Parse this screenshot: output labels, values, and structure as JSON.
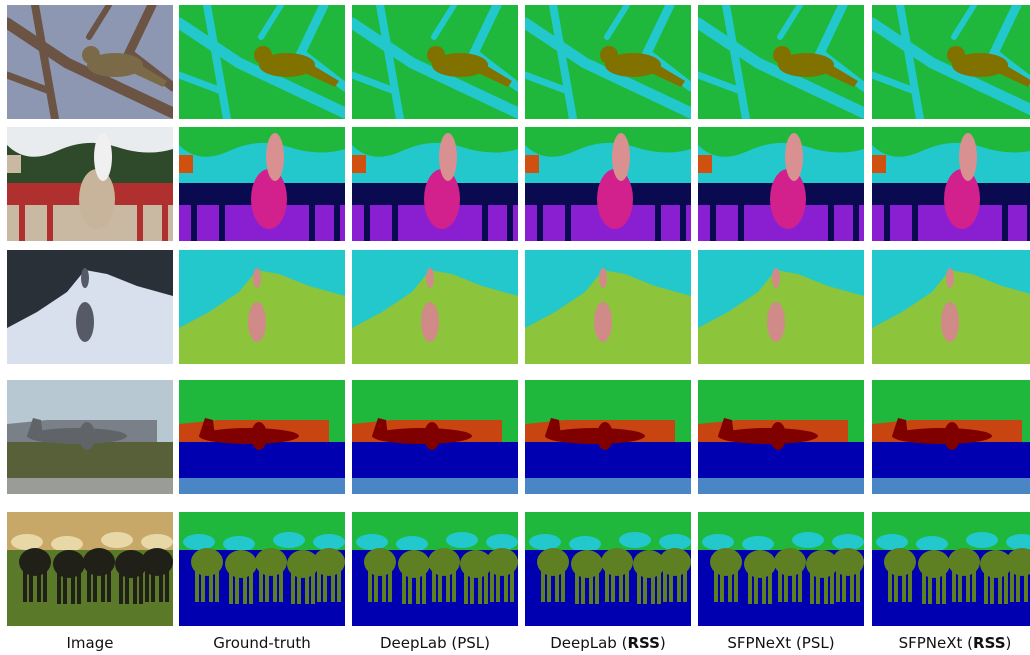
{
  "columns": [
    {
      "label": "Image"
    },
    {
      "label": "Ground-truth"
    },
    {
      "label": "DeepLab (PSL)"
    },
    {
      "prefix": "DeepLab (",
      "bold": "RSS",
      "suffix": ")"
    },
    {
      "label": "SFPNeXt (PSL)"
    },
    {
      "prefix": "SFPNeXt (",
      "bold": "RSS",
      "suffix": ")"
    }
  ]
}
